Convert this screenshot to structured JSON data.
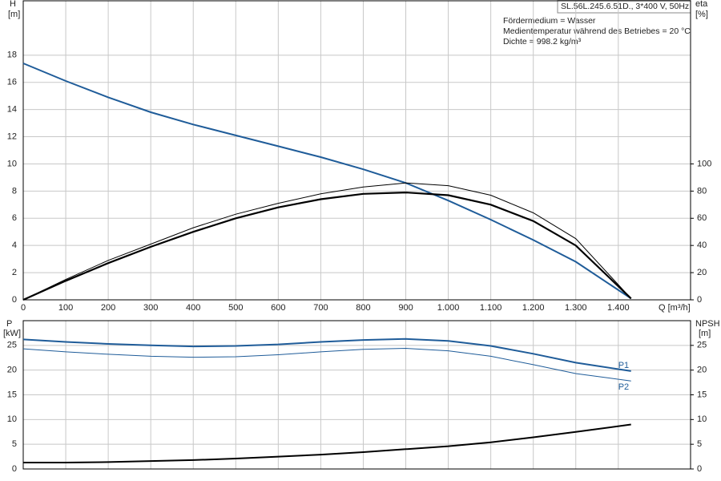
{
  "chart_data": [
    {
      "type": "line",
      "model": "SL.56L.245.6.51D., 3*400 V, 50Hz",
      "annotations": [
        "Fördermedium = Wasser",
        "Medientemperatur während des Betriebes = 20 °C",
        "Dichte = 998.2 kg/m³"
      ],
      "ylabel": "H",
      "yunit": "[m]",
      "y2label": "eta",
      "y2unit": "[%]",
      "xlabel": "Q [m³/h]",
      "x": [
        0,
        100,
        200,
        300,
        400,
        500,
        600,
        700,
        800,
        900,
        1000,
        1100,
        1200,
        1300,
        1430
      ],
      "series": [
        {
          "color": "#1f5c99",
          "line_width": 2,
          "values": [
            17.4,
            16.1,
            14.9,
            13.8,
            12.9,
            12.1,
            11.3,
            10.5,
            9.6,
            8.6,
            7.3,
            5.9,
            4.4,
            2.8,
            0.1
          ]
        },
        {
          "color": "#000000",
          "line_width": 2.2,
          "axis": "y2",
          "values": [
            0,
            14,
            27,
            39,
            50,
            60,
            68,
            74,
            78,
            79,
            77,
            70,
            58,
            40,
            1
          ]
        },
        {
          "color": "#000000",
          "line_width": 1,
          "axis": "y2",
          "values": [
            0,
            15,
            29,
            41,
            53,
            63,
            71,
            78,
            83,
            86,
            84,
            77,
            64,
            45,
            1
          ]
        }
      ],
      "xlim": [
        0,
        1570
      ],
      "xticks": [
        0,
        100,
        200,
        300,
        400,
        500,
        600,
        700,
        800,
        900,
        {
          "value": 1000,
          "label": "1.000"
        },
        {
          "value": 1100,
          "label": "1.100"
        },
        {
          "value": 1200,
          "label": "1.200"
        },
        {
          "value": 1300,
          "label": "1.300"
        },
        {
          "value": 1400,
          "label": "1.400"
        }
      ],
      "ylim": [
        0,
        22
      ],
      "yticks": [
        0,
        2,
        4,
        6,
        8,
        10,
        12,
        14,
        16,
        18
      ],
      "y2lim": [
        0,
        220
      ],
      "y2ticks": [
        0,
        20,
        40,
        60,
        80,
        100
      ],
      "grid": true
    },
    {
      "type": "line",
      "ylabel": "P",
      "yunit": "[kW]",
      "y2label": "NPSH",
      "y2unit": "[m]",
      "x": [
        0,
        100,
        200,
        300,
        400,
        500,
        600,
        700,
        800,
        900,
        1000,
        1100,
        1200,
        1300,
        1430
      ],
      "series": [
        {
          "name": "P1",
          "color": "#1f5c99",
          "line_width": 2,
          "values": [
            26.2,
            25.7,
            25.3,
            25.0,
            24.8,
            24.9,
            25.2,
            25.7,
            26.1,
            26.3,
            25.9,
            24.9,
            23.3,
            21.5,
            19.8
          ]
        },
        {
          "name": "P2",
          "color": "#1f5c99",
          "line_width": 1,
          "values": [
            24.3,
            23.7,
            23.2,
            22.8,
            22.6,
            22.7,
            23.1,
            23.7,
            24.2,
            24.4,
            23.9,
            22.8,
            21.1,
            19.3,
            17.8
          ]
        },
        {
          "color": "#000000",
          "line_width": 2,
          "axis": "y2",
          "values": [
            1.3,
            1.3,
            1.4,
            1.6,
            1.8,
            2.1,
            2.5,
            2.9,
            3.4,
            4.0,
            4.6,
            5.4,
            6.4,
            7.5,
            9.0
          ]
        }
      ],
      "xlim": [
        0,
        1570
      ],
      "ylim": [
        0,
        30
      ],
      "yticks": [
        0,
        5,
        10,
        15,
        20,
        25
      ],
      "y2lim": [
        0,
        30
      ],
      "y2ticks": [
        0,
        5,
        10,
        15,
        20,
        25
      ],
      "grid": true
    }
  ]
}
